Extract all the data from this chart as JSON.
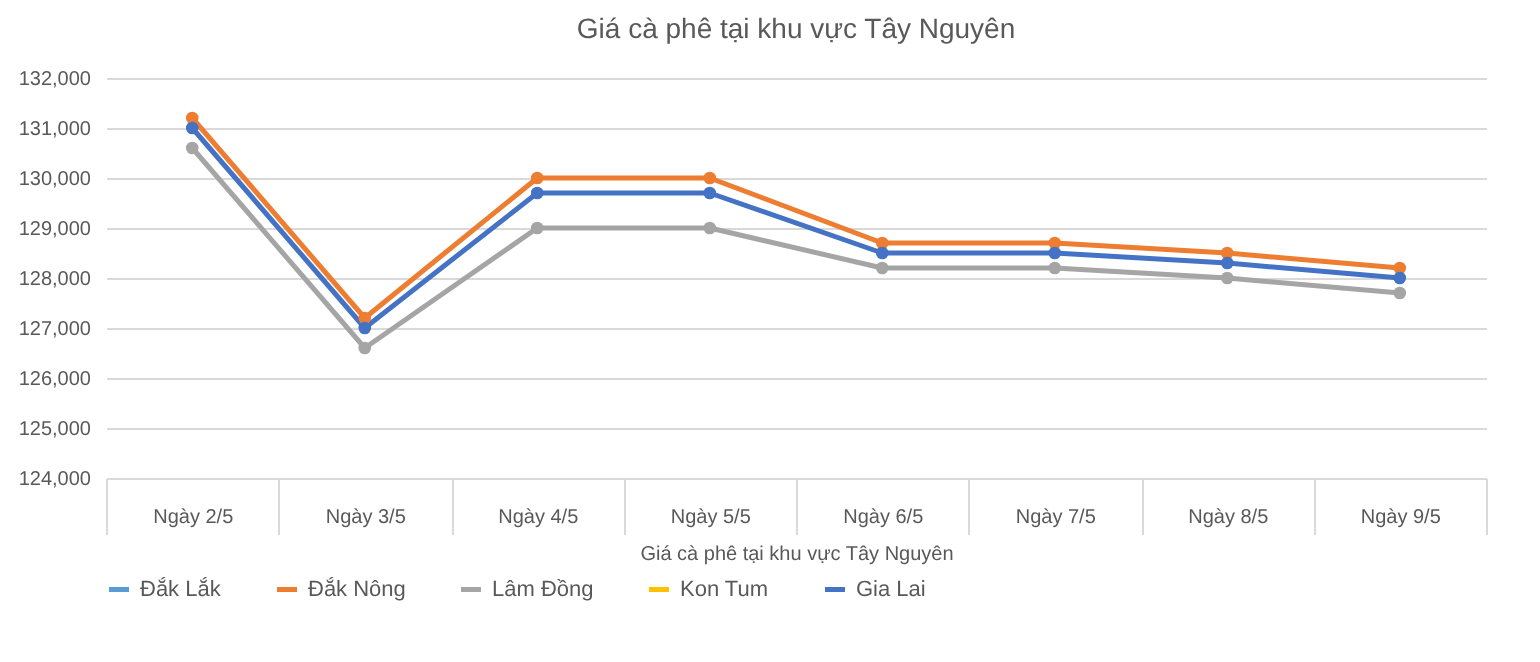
{
  "chart_data": {
    "type": "line",
    "title": "Giá cà phê tại khu vực Tây Nguyên",
    "xlabel": "Giá cà phê tại khu vực Tây Nguyên",
    "categories": [
      "Ngày 2/5",
      "Ngày 3/5",
      "Ngày 4/5",
      "Ngày 5/5",
      "Ngày 6/5",
      "Ngày 7/5",
      "Ngày 8/5",
      "Ngày 9/5"
    ],
    "series": [
      {
        "name": "Đắk Lắk",
        "color": "#5b9bd5",
        "values": [
          null,
          null,
          null,
          null,
          null,
          null,
          null,
          null
        ]
      },
      {
        "name": "Đắk Nông",
        "color": "#ed7d31",
        "values": [
          131200,
          127200,
          130000,
          130000,
          128700,
          128700,
          128500,
          128200
        ]
      },
      {
        "name": "Lâm Đồng",
        "color": "#a5a5a5",
        "values": [
          130600,
          126600,
          129000,
          129000,
          128200,
          128200,
          128000,
          127700
        ]
      },
      {
        "name": "Kon Tum",
        "color": "#ffc000",
        "values": [
          null,
          null,
          null,
          null,
          null,
          null,
          null,
          null
        ]
      },
      {
        "name": "Gia Lai",
        "color": "#4472c4",
        "values": [
          131000,
          127000,
          129700,
          129700,
          128500,
          128500,
          128300,
          128000
        ]
      }
    ],
    "ylim": [
      124000,
      132000
    ],
    "yticks": [
      {
        "value": 124000,
        "label": "124,000"
      },
      {
        "value": 125000,
        "label": "125,000"
      },
      {
        "value": 126000,
        "label": "126,000"
      },
      {
        "value": 127000,
        "label": "127,000"
      },
      {
        "value": 128000,
        "label": "128,000"
      },
      {
        "value": 129000,
        "label": "129,000"
      },
      {
        "value": 130000,
        "label": "130,000"
      },
      {
        "value": 131000,
        "label": "131,000"
      },
      {
        "value": 132000,
        "label": "132,000"
      }
    ],
    "grid": "y",
    "legend": "bottom",
    "marker": "circle",
    "line_style": "solid"
  }
}
